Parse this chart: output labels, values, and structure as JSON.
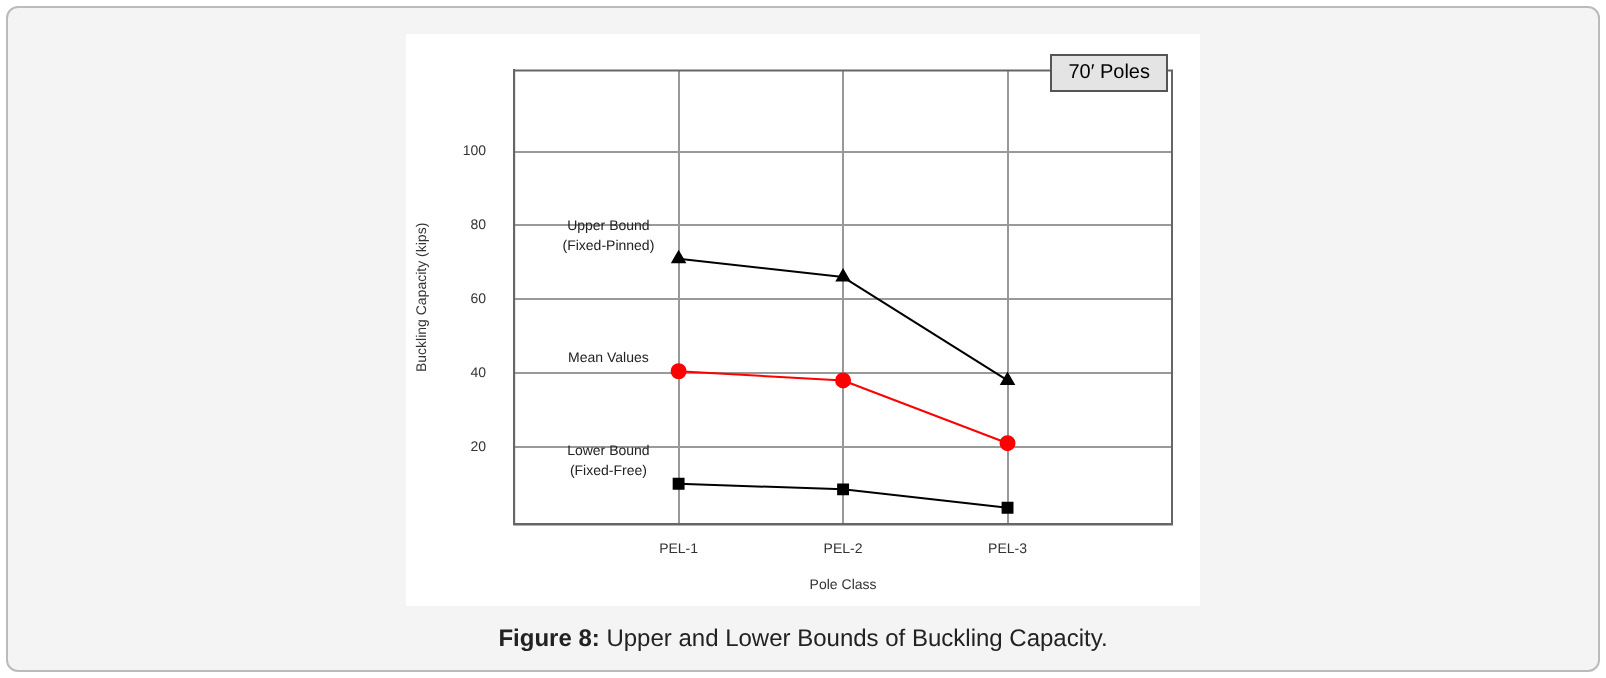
{
  "chart_data": {
    "type": "line",
    "xlabel": "Pole Class",
    "ylabel": "Buckling Capacity (kips)",
    "categories": [
      null,
      "PEL-1",
      "PEL-2",
      "PEL-3",
      null
    ],
    "series": [
      {
        "name": "Upper Bound (Fixed-Pinned)",
        "color": "#000000",
        "marker": "triangle",
        "values": [
          null,
          71,
          66,
          38,
          null
        ]
      },
      {
        "name": "Mean Values",
        "color": "#ff0000",
        "marker": "circle",
        "values": [
          null,
          40.5,
          38,
          21,
          null
        ]
      },
      {
        "name": "Lower Bound (Fixed-Free)",
        "color": "#000000",
        "marker": "square",
        "values": [
          null,
          10,
          8.5,
          3.5,
          null
        ]
      }
    ],
    "ylim": [
      -1,
      122
    ],
    "yticks": [
      20,
      40,
      60,
      80,
      100
    ],
    "grid": true,
    "legend": false,
    "annotations": [
      "70′ Poles",
      "Figure 8: Upper and Lower Bounds of Buckling Capacity."
    ]
  }
}
